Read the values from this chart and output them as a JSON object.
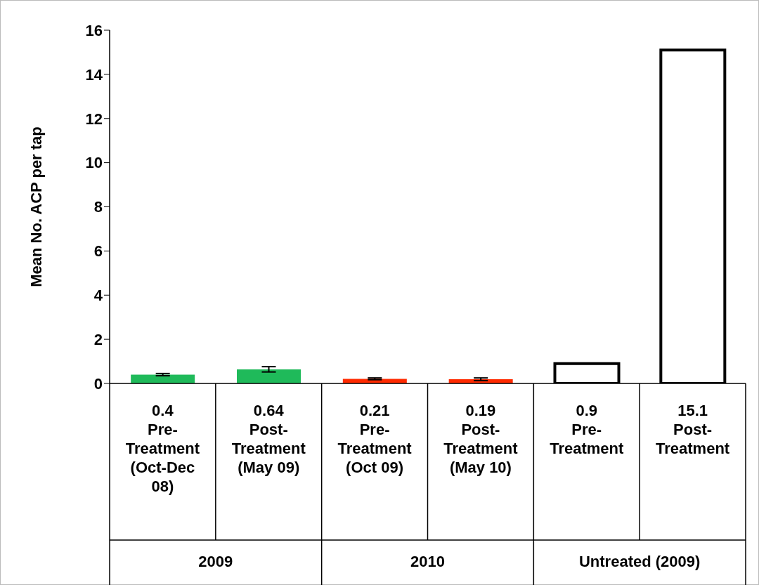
{
  "chart_data": {
    "type": "bar",
    "ylabel": "Mean No. ACP per tap",
    "categories": [
      "Pre-Treatment (Oct-Dec 08)",
      "Post-Treatment (May 09)",
      "Pre-Treatment (Oct 09)",
      "Post-Treatment (May 10)",
      "Pre-Treatment",
      "Post-Treatment"
    ],
    "values": [
      0.4,
      0.64,
      0.21,
      0.19,
      0.9,
      15.1
    ],
    "value_labels": [
      "0.4",
      "0.64",
      "0.21",
      "0.19",
      "0.9",
      "15.1"
    ],
    "errors": [
      0.05,
      0.12,
      0.04,
      0.06,
      null,
      null
    ],
    "colors": [
      "#1fba5a",
      "#1fba5a",
      "#ff2a00",
      "#ff2a00",
      "#ffffff",
      "#ffffff"
    ],
    "annotations": [
      "2009",
      "2010",
      "Untreated (2009)"
    ],
    "ylim": [
      0,
      16
    ],
    "yticks": [
      0,
      2,
      4,
      6,
      8,
      10,
      12,
      14,
      16
    ]
  }
}
